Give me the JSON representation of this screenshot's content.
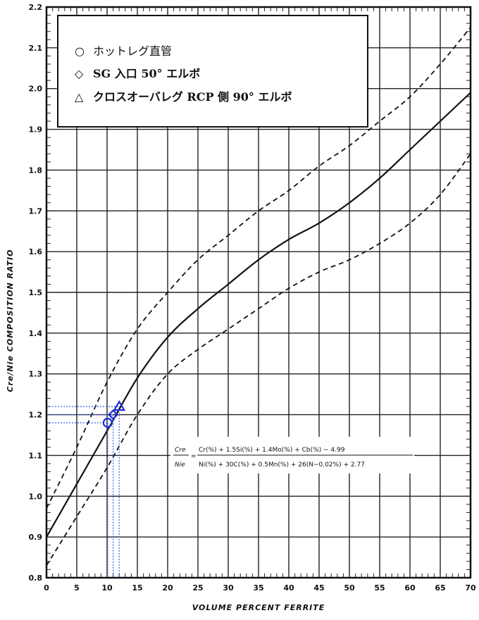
{
  "chart_data": {
    "type": "line",
    "title": "",
    "xlabel": "VOLUME PERCENT FERRITE",
    "ylabel": "Cre/Nie COMPOSITION RATIO",
    "xlim": [
      0,
      70
    ],
    "ylim": [
      0.8,
      2.2
    ],
    "xticks": [
      "0",
      "5",
      "10",
      "15",
      "20",
      "25",
      "30",
      "35",
      "40",
      "45",
      "50",
      "55",
      "60",
      "65",
      "70"
    ],
    "yticks": [
      "0.8",
      "0.9",
      "1.0",
      "1.1",
      "1.2",
      "1.3",
      "1.4",
      "1.5",
      "1.6",
      "1.7",
      "1.8",
      "1.9",
      "2.0",
      "2.1",
      "2.2"
    ],
    "grid": true,
    "series": [
      {
        "style": "solid",
        "x": [
          0,
          5,
          10,
          15,
          20,
          25,
          30,
          35,
          40,
          45,
          50,
          55,
          60,
          65,
          70
        ],
        "y": [
          0.9,
          1.03,
          1.16,
          1.29,
          1.39,
          1.46,
          1.52,
          1.58,
          1.63,
          1.67,
          1.72,
          1.78,
          1.85,
          1.92,
          1.99
        ]
      },
      {
        "style": "dashed",
        "x": [
          0,
          5,
          10,
          15,
          20,
          25,
          30,
          35,
          40,
          45,
          50,
          55,
          60,
          65,
          70
        ],
        "y": [
          0.97,
          1.12,
          1.28,
          1.41,
          1.5,
          1.58,
          1.64,
          1.7,
          1.75,
          1.81,
          1.86,
          1.92,
          1.98,
          2.06,
          2.15
        ]
      },
      {
        "style": "dashed",
        "x": [
          0,
          5,
          10,
          15,
          20,
          25,
          30,
          35,
          40,
          45,
          50,
          55,
          60,
          65,
          70
        ],
        "y": [
          0.83,
          0.95,
          1.07,
          1.2,
          1.3,
          1.36,
          1.41,
          1.46,
          1.51,
          1.55,
          1.58,
          1.62,
          1.67,
          1.74,
          1.84
        ]
      }
    ],
    "markers": [
      {
        "label": "ホットレグ直管",
        "symbol": "circle",
        "x": 10.1,
        "y": 1.18
      },
      {
        "label": "SG 入口 50° エルボ",
        "symbol": "diamond",
        "x": 11.0,
        "y": 1.2
      },
      {
        "label": "クロスオーバレグ RCP 側 90° エルボ",
        "symbol": "triangle",
        "x": 12.0,
        "y": 1.22
      }
    ],
    "legend": {
      "placement": "top-left",
      "entries": [
        "ホットレグ直管",
        "SG 入口 50° エルボ",
        "クロスオーバレグ RCP 側 90° エルボ"
      ],
      "symbols": [
        "○",
        "◇",
        "△"
      ]
    },
    "formula": {
      "lhs_top": "Cre",
      "lhs_bottom": "Nie",
      "numerator": "Cr(%) + 1.5Si(%) + 1.4Mo(%) + Cb(%) − 4.99",
      "denominator": "Ni(%) + 30C(%) + 0.5Mn(%) + 26(N−0.02%) + 2.77"
    },
    "colors": {
      "curve": "#111111",
      "grid": "#222222",
      "marker": "#1a2fd6",
      "guide": "#3b5bff"
    }
  }
}
